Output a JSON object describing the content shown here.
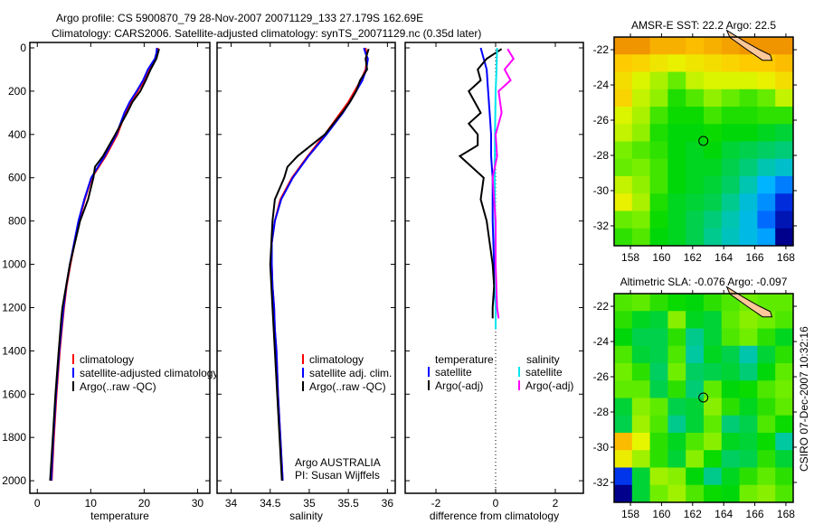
{
  "title": {
    "line1": "Argo profile: CS 5900870_79 28-Nov-2007 20071129_133 27.179S 162.69E",
    "line2": "Climatology: CARS2006. Satellite-adjusted climatology: synTS_20071129.nc (0.35d later)"
  },
  "footer_stamp": "CSIRO 07-Dec-2007 10:32:16",
  "colors": {
    "climatology": "#ff0000",
    "satellite": "#0000ff",
    "argo": "#000000",
    "sal_satellite": "#00e5ee",
    "sal_argo": "#ff00ff",
    "land": "#ffc89a"
  },
  "chart_data": [
    {
      "type": "line",
      "id": "temperature",
      "xlabel": "temperature",
      "ylabel": "",
      "xlim": [
        -1.4,
        32.3
      ],
      "ylim": [
        2058,
        -25
      ],
      "xticks": [
        0,
        10,
        20,
        30
      ],
      "yticks": [
        0,
        200,
        400,
        600,
        800,
        1000,
        1200,
        1400,
        1600,
        1800,
        2000
      ],
      "legend": [
        "climatology",
        "satellite-adjusted climatology",
        "Argo(..raw -QC)"
      ],
      "series": [
        {
          "name": "climatology",
          "color": "#ff0000",
          "depth": [
            0,
            25,
            50,
            100,
            150,
            200,
            250,
            300,
            400,
            500,
            600,
            700,
            800,
            900,
            1000,
            1100,
            1200,
            1300,
            1400,
            1600,
            1800,
            2000
          ],
          "values": [
            22.6,
            22.5,
            22.2,
            21,
            20,
            18.8,
            17.5,
            16.5,
            15,
            12.8,
            10.2,
            8.9,
            7.8,
            7,
            6.2,
            5.5,
            5.0,
            4.6,
            4.2,
            3.6,
            3.1,
            2.7
          ]
        },
        {
          "name": "satellite-adjusted climatology",
          "color": "#0000ff",
          "depth": [
            0,
            25,
            50,
            100,
            150,
            200,
            250,
            300,
            400,
            500,
            600,
            700,
            800,
            900,
            1000,
            1100,
            1200,
            1300,
            1400,
            1600,
            1800,
            2000
          ],
          "values": [
            22.4,
            22.3,
            22,
            20.7,
            19.8,
            18.6,
            17.3,
            16.3,
            14.8,
            12.6,
            10.1,
            8.8,
            7.7,
            6.9,
            6.1,
            5.4,
            4.9,
            4.5,
            4.1,
            3.5,
            3.0,
            2.6
          ]
        },
        {
          "name": "Argo(..raw -QC)",
          "color": "#000000",
          "depth": [
            5,
            50,
            100,
            150,
            200,
            250,
            300,
            400,
            500,
            550,
            600,
            650,
            700,
            800,
            1000,
            1200,
            1250,
            1400,
            1600,
            1800,
            2000
          ],
          "values": [
            22.8,
            22.3,
            21.2,
            20.3,
            19.3,
            17.8,
            16.8,
            14.6,
            12.3,
            10.8,
            10.5,
            10,
            9.5,
            8,
            6.1,
            4.7,
            4.5,
            4.0,
            3.4,
            2.9,
            2.4
          ]
        }
      ]
    },
    {
      "type": "line",
      "id": "salinity",
      "xlabel": "salinity",
      "ylabel": "",
      "xlim": [
        33.82,
        36.1
      ],
      "ylim": [
        2058,
        -25
      ],
      "xticks": [
        34,
        34.5,
        35,
        35.5,
        36
      ],
      "yticks": [
        0,
        200,
        400,
        600,
        800,
        1000,
        1200,
        1400,
        1600,
        1800,
        2000
      ],
      "legend": [
        "climatology",
        "satellite adj. clim.",
        "Argo(..raw -QC)"
      ],
      "annotation": [
        "Argo AUSTRALIA",
        "PI: Susan Wijffels"
      ],
      "series": [
        {
          "name": "climatology",
          "color": "#ff0000",
          "depth": [
            0,
            25,
            50,
            100,
            150,
            200,
            250,
            300,
            400,
            500,
            600,
            700,
            800,
            900,
            1000,
            1100,
            1200,
            1300,
            1400,
            1600,
            1800,
            2000
          ],
          "values": [
            35.72,
            35.73,
            35.74,
            35.72,
            35.66,
            35.58,
            35.5,
            35.4,
            35.2,
            34.98,
            34.78,
            34.63,
            34.56,
            34.52,
            34.52,
            34.53,
            34.55,
            34.56,
            34.58,
            34.6,
            34.63,
            34.66
          ]
        },
        {
          "name": "satellite adj. clim.",
          "color": "#0000ff",
          "depth": [
            0,
            25,
            50,
            100,
            150,
            200,
            250,
            300,
            400,
            500,
            600,
            700,
            800,
            900,
            1000,
            1100,
            1200,
            1300,
            1400,
            1600,
            1800,
            2000
          ],
          "values": [
            35.7,
            35.72,
            35.75,
            35.73,
            35.68,
            35.6,
            35.52,
            35.43,
            35.22,
            34.99,
            34.79,
            34.64,
            34.56,
            34.52,
            34.52,
            34.53,
            34.55,
            34.56,
            34.58,
            34.6,
            34.63,
            34.66
          ]
        },
        {
          "name": "Argo(..raw -QC)",
          "color": "#000000",
          "depth": [
            5,
            50,
            100,
            150,
            200,
            250,
            300,
            400,
            500,
            550,
            600,
            700,
            800,
            1000,
            1200,
            1400,
            1600,
            1800,
            2000
          ],
          "values": [
            35.76,
            35.72,
            35.74,
            35.65,
            35.6,
            35.52,
            35.42,
            35.2,
            34.85,
            34.72,
            34.68,
            34.56,
            34.53,
            34.5,
            34.53,
            34.56,
            34.59,
            34.62,
            34.65
          ]
        }
      ]
    },
    {
      "type": "line",
      "id": "difference",
      "xlabel": "difference from climatology",
      "ylabel": "",
      "xlim": [
        -3.03,
        2.94
      ],
      "ylim": [
        2058,
        -25
      ],
      "xticks": [
        -2,
        0,
        2
      ],
      "yticks": [
        0,
        200,
        400,
        600,
        800,
        1000,
        1200,
        1400,
        1600,
        1800,
        2000
      ],
      "legend_headers": [
        "temperature",
        "salinity"
      ],
      "legend": [
        "satellite",
        "Argo(-adj)",
        "satellite",
        "Argo(-adj)"
      ],
      "series": [
        {
          "name": "temperature satellite",
          "color": "#0000ff",
          "depth": [
            0,
            50,
            100,
            200,
            300,
            400,
            500,
            600,
            800,
            1000,
            1200,
            1300
          ],
          "values": [
            -0.5,
            -0.4,
            -0.3,
            -0.25,
            -0.2,
            -0.15,
            -0.15,
            -0.1,
            -0.1,
            -0.05,
            0,
            0
          ]
        },
        {
          "name": "temperature Argo(-adj)",
          "color": "#000000",
          "depth": [
            5,
            50,
            100,
            150,
            200,
            250,
            300,
            350,
            400,
            450,
            500,
            550,
            600,
            700,
            800,
            900,
            1000,
            1100,
            1200,
            1250
          ],
          "values": [
            0.2,
            -0.3,
            -0.6,
            -0.5,
            -0.9,
            -0.7,
            -0.5,
            -0.9,
            -0.6,
            -0.6,
            -1.2,
            -0.8,
            -0.4,
            -0.5,
            -0.3,
            -0.2,
            -0.1,
            -0.05,
            -0.1,
            -0.1
          ]
        },
        {
          "name": "salinity satellite",
          "color": "#00e5ee",
          "depth": [
            0,
            100,
            200,
            400,
            600,
            800,
            1000,
            1200,
            1300
          ],
          "values": [
            0.05,
            0.03,
            0,
            -0.02,
            -0.03,
            -0.02,
            0,
            0,
            0
          ]
        },
        {
          "name": "salinity Argo(-adj)",
          "color": "#ff00ff",
          "depth": [
            5,
            50,
            100,
            150,
            200,
            300,
            400,
            500,
            600,
            700,
            800,
            1000,
            1200,
            1250
          ],
          "values": [
            0.4,
            0.6,
            0.3,
            0.5,
            0.1,
            0.2,
            0,
            0.05,
            -0.1,
            -0.05,
            0,
            0,
            0.05,
            0.1
          ]
        }
      ]
    },
    {
      "type": "heatmap",
      "id": "sst",
      "title": "AMSR-E SST: 22.2 Argo: 22.5",
      "xlim": [
        156.95,
        168.47
      ],
      "ylim": [
        -33.13,
        -21.28
      ],
      "xticks": [
        158,
        160,
        162,
        164,
        166,
        168
      ],
      "yticks": [
        -22,
        -24,
        -26,
        -28,
        -30,
        -32
      ],
      "vmin": 19.4,
      "vmax": 24.2,
      "argo_position": [
        162.69,
        -27.179
      ],
      "grid": [
        [
          24,
          24,
          23.8,
          23.8,
          23.7,
          23.8,
          23.9,
          24,
          24,
          24
        ],
        [
          23.6,
          23.5,
          23.3,
          23.2,
          23.3,
          23.4,
          23.5,
          23.6,
          23.6,
          23.7
        ],
        [
          23.4,
          23.1,
          22.9,
          22.6,
          23,
          23.1,
          23.1,
          23.1,
          23.2,
          23.4
        ],
        [
          23.5,
          23,
          22.8,
          22.2,
          22.5,
          22.8,
          22.6,
          22.4,
          22.6,
          23
        ],
        [
          23.1,
          22.9,
          22.4,
          22.1,
          22.1,
          22.4,
          22.2,
          22.2,
          22.3,
          22.3
        ],
        [
          23,
          22.8,
          22.2,
          22,
          22,
          22.1,
          22,
          22,
          21.9,
          21.8
        ],
        [
          22.7,
          22.5,
          22.3,
          22,
          21.9,
          22,
          21.8,
          21.7,
          21.6,
          21.5
        ],
        [
          22.6,
          22.7,
          22.4,
          22,
          21.9,
          21.9,
          21.7,
          21.5,
          21.2,
          21
        ],
        [
          23,
          22.8,
          22.4,
          22,
          21.9,
          21.8,
          21.6,
          21.2,
          20.6,
          20.3
        ],
        [
          23.2,
          22.9,
          22.2,
          21.9,
          21.8,
          21.7,
          21.4,
          20.9,
          20.4,
          19.8
        ],
        [
          22.6,
          22.7,
          22.1,
          21.9,
          21.7,
          21.5,
          21.2,
          20.8,
          20.2,
          19.6
        ],
        [
          22.3,
          22.5,
          22,
          21.9,
          21.7,
          21.4,
          21.1,
          20.8,
          20.5,
          19.4
        ]
      ]
    },
    {
      "type": "heatmap",
      "id": "sla",
      "title": "Altimetric SLA: -0.076 Argo: -0.097",
      "xlim": [
        156.95,
        168.47
      ],
      "ylim": [
        -33.13,
        -21.28
      ],
      "xticks": [
        158,
        160,
        162,
        164,
        166,
        168
      ],
      "yticks": [
        -22,
        -24,
        -26,
        -28,
        -30,
        -32
      ],
      "vmin": -0.3,
      "vmax": 0.2,
      "argo_position": [
        162.69,
        -27.179
      ],
      "grid": [
        [
          0.02,
          0.03,
          0.0,
          -0.02,
          -0.03,
          0.0,
          0.02,
          0.04,
          0.03,
          0.03
        ],
        [
          0.0,
          -0.04,
          -0.05,
          0.05,
          -0.04,
          -0.05,
          0.03,
          0.05,
          0.04,
          0.02
        ],
        [
          -0.03,
          -0.06,
          -0.06,
          0.0,
          -0.09,
          -0.05,
          0.02,
          0.04,
          0.0,
          -0.04
        ],
        [
          0.02,
          -0.05,
          -0.06,
          0.02,
          -0.1,
          -0.04,
          -0.06,
          -0.11,
          -0.05,
          0.0
        ],
        [
          0.04,
          0.0,
          -0.07,
          0.04,
          -0.07,
          -0.06,
          -0.05,
          -0.08,
          -0.03,
          0.03
        ],
        [
          0.03,
          0.03,
          -0.06,
          0.0,
          -0.08,
          0.03,
          -0.03,
          -0.02,
          0.02,
          0.04
        ],
        [
          -0.05,
          0.05,
          0.03,
          -0.06,
          -0.05,
          0.05,
          0.0,
          -0.04,
          0.0,
          0.03
        ],
        [
          -0.06,
          0.06,
          0.02,
          -0.09,
          -0.05,
          0.03,
          -0.08,
          -0.06,
          0.02,
          -0.02
        ],
        [
          0.15,
          0.09,
          0.0,
          -0.04,
          0.02,
          0.05,
          -0.04,
          -0.05,
          -0.02,
          -0.1
        ],
        [
          0.1,
          0.06,
          0.0,
          -0.05,
          0.05,
          -0.02,
          -0.07,
          -0.06,
          0.0,
          -0.05
        ],
        [
          -0.25,
          -0.05,
          0.06,
          0.05,
          -0.03,
          -0.09,
          -0.04,
          0.0,
          0.03,
          0.0
        ],
        [
          -0.3,
          -0.05,
          0.04,
          0.06,
          0.02,
          -0.02,
          -0.03,
          0.04,
          0.05,
          0.02
        ]
      ]
    }
  ],
  "coastline_new_caledonia": [
    [
      164.2,
      -20.9
    ],
    [
      165.3,
      -21.5
    ],
    [
      166.3,
      -22.0
    ],
    [
      167.0,
      -22.3
    ],
    [
      167.1,
      -22.6
    ],
    [
      166.5,
      -22.6
    ],
    [
      165.5,
      -22.0
    ],
    [
      164.4,
      -21.3
    ]
  ]
}
